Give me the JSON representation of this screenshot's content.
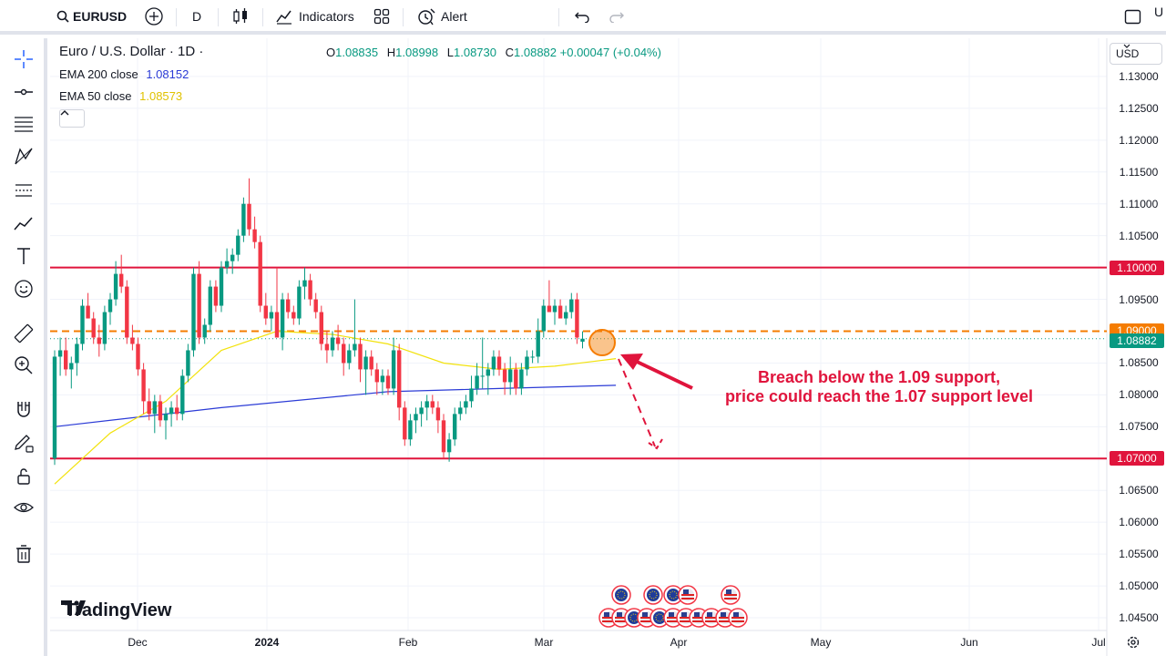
{
  "toolbar": {
    "symbol": "EURUSD",
    "interval": "D",
    "indicators_label": "Indicators",
    "alert_label": "Alert",
    "cut_text": "U"
  },
  "legend": {
    "title": "Euro / U.S. Dollar · 1D ·",
    "open_key": "O",
    "open": "1.08835",
    "high_key": "H",
    "high": "1.08998",
    "low_key": "L",
    "low": "1.08730",
    "close_key": "C",
    "close": "1.08882",
    "change": "+0.00047 (+0.04%)",
    "ema200_label": "EMA 200 close",
    "ema200_value": "1.08152",
    "ema200_color": "#2b3bd6",
    "ema50_label": "EMA 50 close",
    "ema50_value": "1.08573",
    "ema50_color": "#f2e20c"
  },
  "currency": "USD",
  "price_axis": [
    "1.13000",
    "1.12500",
    "1.12000",
    "1.11500",
    "1.11000",
    "1.10500",
    "1.09500",
    "1.08500",
    "1.08000",
    "1.07500",
    "1.06500",
    "1.06000",
    "1.05500",
    "1.05000",
    "1.04500"
  ],
  "price_tags": [
    {
      "label": "1.10000",
      "price": 1.1,
      "color": "#e0143c"
    },
    {
      "label": "1.09000",
      "price": 1.09,
      "color": "#f57c00"
    },
    {
      "label": "1.08882",
      "price": 1.08882,
      "color": "#089981"
    },
    {
      "label": "1.07000",
      "price": 1.07,
      "color": "#e0143c"
    }
  ],
  "time_axis": [
    "Dec",
    "2024",
    "Feb",
    "Mar",
    "Apr",
    "May",
    "Jun",
    "Jul"
  ],
  "annotation": {
    "line1": "Breach below the 1.09 support,",
    "line2": "price could reach the 1.07 support level"
  },
  "brand": "TradingView",
  "colors": {
    "up": "#089981",
    "down": "#f23645",
    "resistance": "#e0143c",
    "support_dashed": "#f57c00"
  },
  "chart_data": {
    "type": "candlestick",
    "ylim": [
      1.043,
      1.136
    ],
    "levels": [
      1.1,
      1.09,
      1.07
    ],
    "candles": [
      {
        "o": 1.07,
        "h": 1.087,
        "l": 1.069,
        "c": 1.086
      },
      {
        "o": 1.086,
        "h": 1.089,
        "l": 1.083,
        "c": 1.087
      },
      {
        "o": 1.087,
        "h": 1.089,
        "l": 1.083,
        "c": 1.084
      },
      {
        "o": 1.084,
        "h": 1.086,
        "l": 1.081,
        "c": 1.085
      },
      {
        "o": 1.085,
        "h": 1.089,
        "l": 1.083,
        "c": 1.088
      },
      {
        "o": 1.088,
        "h": 1.095,
        "l": 1.087,
        "c": 1.094
      },
      {
        "o": 1.094,
        "h": 1.096,
        "l": 1.092,
        "c": 1.092
      },
      {
        "o": 1.092,
        "h": 1.093,
        "l": 1.088,
        "c": 1.089
      },
      {
        "o": 1.089,
        "h": 1.091,
        "l": 1.086,
        "c": 1.088
      },
      {
        "o": 1.088,
        "h": 1.094,
        "l": 1.087,
        "c": 1.093
      },
      {
        "o": 1.093,
        "h": 1.096,
        "l": 1.091,
        "c": 1.095
      },
      {
        "o": 1.095,
        "h": 1.101,
        "l": 1.094,
        "c": 1.099
      },
      {
        "o": 1.099,
        "h": 1.102,
        "l": 1.096,
        "c": 1.097
      },
      {
        "o": 1.097,
        "h": 1.098,
        "l": 1.088,
        "c": 1.089
      },
      {
        "o": 1.089,
        "h": 1.091,
        "l": 1.087,
        "c": 1.088
      },
      {
        "o": 1.088,
        "h": 1.089,
        "l": 1.083,
        "c": 1.084
      },
      {
        "o": 1.084,
        "h": 1.085,
        "l": 1.077,
        "c": 1.079
      },
      {
        "o": 1.079,
        "h": 1.081,
        "l": 1.076,
        "c": 1.077
      },
      {
        "o": 1.077,
        "h": 1.08,
        "l": 1.074,
        "c": 1.079
      },
      {
        "o": 1.079,
        "h": 1.08,
        "l": 1.075,
        "c": 1.076
      },
      {
        "o": 1.076,
        "h": 1.078,
        "l": 1.073,
        "c": 1.077
      },
      {
        "o": 1.077,
        "h": 1.079,
        "l": 1.075,
        "c": 1.078
      },
      {
        "o": 1.078,
        "h": 1.08,
        "l": 1.076,
        "c": 1.077
      },
      {
        "o": 1.077,
        "h": 1.084,
        "l": 1.076,
        "c": 1.083
      },
      {
        "o": 1.083,
        "h": 1.088,
        "l": 1.082,
        "c": 1.087
      },
      {
        "o": 1.087,
        "h": 1.1,
        "l": 1.086,
        "c": 1.099
      },
      {
        "o": 1.099,
        "h": 1.101,
        "l": 1.088,
        "c": 1.089
      },
      {
        "o": 1.089,
        "h": 1.092,
        "l": 1.088,
        "c": 1.091
      },
      {
        "o": 1.091,
        "h": 1.098,
        "l": 1.09,
        "c": 1.097
      },
      {
        "o": 1.097,
        "h": 1.098,
        "l": 1.093,
        "c": 1.094
      },
      {
        "o": 1.094,
        "h": 1.101,
        "l": 1.093,
        "c": 1.1
      },
      {
        "o": 1.1,
        "h": 1.103,
        "l": 1.099,
        "c": 1.101
      },
      {
        "o": 1.101,
        "h": 1.103,
        "l": 1.099,
        "c": 1.102
      },
      {
        "o": 1.102,
        "h": 1.106,
        "l": 1.101,
        "c": 1.105
      },
      {
        "o": 1.105,
        "h": 1.111,
        "l": 1.104,
        "c": 1.11
      },
      {
        "o": 1.11,
        "h": 1.114,
        "l": 1.105,
        "c": 1.106
      },
      {
        "o": 1.106,
        "h": 1.108,
        "l": 1.103,
        "c": 1.104
      },
      {
        "o": 1.104,
        "h": 1.105,
        "l": 1.093,
        "c": 1.094
      },
      {
        "o": 1.094,
        "h": 1.096,
        "l": 1.091,
        "c": 1.092
      },
      {
        "o": 1.092,
        "h": 1.094,
        "l": 1.09,
        "c": 1.093
      },
      {
        "o": 1.093,
        "h": 1.1,
        "l": 1.089,
        "c": 1.089
      },
      {
        "o": 1.089,
        "h": 1.096,
        "l": 1.087,
        "c": 1.095
      },
      {
        "o": 1.095,
        "h": 1.096,
        "l": 1.092,
        "c": 1.093
      },
      {
        "o": 1.093,
        "h": 1.094,
        "l": 1.091,
        "c": 1.092
      },
      {
        "o": 1.092,
        "h": 1.098,
        "l": 1.091,
        "c": 1.097
      },
      {
        "o": 1.097,
        "h": 1.1,
        "l": 1.095,
        "c": 1.098
      },
      {
        "o": 1.098,
        "h": 1.099,
        "l": 1.094,
        "c": 1.095
      },
      {
        "o": 1.095,
        "h": 1.096,
        "l": 1.092,
        "c": 1.093
      },
      {
        "o": 1.093,
        "h": 1.094,
        "l": 1.087,
        "c": 1.088
      },
      {
        "o": 1.088,
        "h": 1.09,
        "l": 1.085,
        "c": 1.087
      },
      {
        "o": 1.087,
        "h": 1.09,
        "l": 1.086,
        "c": 1.089
      },
      {
        "o": 1.089,
        "h": 1.091,
        "l": 1.087,
        "c": 1.088
      },
      {
        "o": 1.088,
        "h": 1.089,
        "l": 1.083,
        "c": 1.085
      },
      {
        "o": 1.085,
        "h": 1.088,
        "l": 1.084,
        "c": 1.087
      },
      {
        "o": 1.087,
        "h": 1.095,
        "l": 1.086,
        "c": 1.088
      },
      {
        "o": 1.088,
        "h": 1.089,
        "l": 1.082,
        "c": 1.084
      },
      {
        "o": 1.084,
        "h": 1.087,
        "l": 1.08,
        "c": 1.086
      },
      {
        "o": 1.086,
        "h": 1.087,
        "l": 1.083,
        "c": 1.084
      },
      {
        "o": 1.084,
        "h": 1.085,
        "l": 1.08,
        "c": 1.082
      },
      {
        "o": 1.082,
        "h": 1.084,
        "l": 1.08,
        "c": 1.083
      },
      {
        "o": 1.083,
        "h": 1.084,
        "l": 1.08,
        "c": 1.081
      },
      {
        "o": 1.081,
        "h": 1.089,
        "l": 1.08,
        "c": 1.087
      },
      {
        "o": 1.087,
        "h": 1.088,
        "l": 1.076,
        "c": 1.078
      },
      {
        "o": 1.078,
        "h": 1.079,
        "l": 1.072,
        "c": 1.073
      },
      {
        "o": 1.073,
        "h": 1.077,
        "l": 1.072,
        "c": 1.076
      },
      {
        "o": 1.076,
        "h": 1.078,
        "l": 1.074,
        "c": 1.077
      },
      {
        "o": 1.077,
        "h": 1.079,
        "l": 1.075,
        "c": 1.078
      },
      {
        "o": 1.078,
        "h": 1.08,
        "l": 1.076,
        "c": 1.079
      },
      {
        "o": 1.079,
        "h": 1.08,
        "l": 1.077,
        "c": 1.078
      },
      {
        "o": 1.078,
        "h": 1.079,
        "l": 1.074,
        "c": 1.076
      },
      {
        "o": 1.076,
        "h": 1.077,
        "l": 1.07,
        "c": 1.071
      },
      {
        "o": 1.071,
        "h": 1.074,
        "l": 1.0695,
        "c": 1.073
      },
      {
        "o": 1.073,
        "h": 1.078,
        "l": 1.072,
        "c": 1.077
      },
      {
        "o": 1.077,
        "h": 1.079,
        "l": 1.076,
        "c": 1.078
      },
      {
        "o": 1.078,
        "h": 1.08,
        "l": 1.077,
        "c": 1.079
      },
      {
        "o": 1.079,
        "h": 1.083,
        "l": 1.078,
        "c": 1.081
      },
      {
        "o": 1.081,
        "h": 1.085,
        "l": 1.08,
        "c": 1.083
      },
      {
        "o": 1.083,
        "h": 1.089,
        "l": 1.081,
        "c": 1.083
      },
      {
        "o": 1.083,
        "h": 1.085,
        "l": 1.08,
        "c": 1.084
      },
      {
        "o": 1.084,
        "h": 1.087,
        "l": 1.083,
        "c": 1.086
      },
      {
        "o": 1.086,
        "h": 1.087,
        "l": 1.083,
        "c": 1.084
      },
      {
        "o": 1.084,
        "h": 1.085,
        "l": 1.08,
        "c": 1.082
      },
      {
        "o": 1.082,
        "h": 1.086,
        "l": 1.08,
        "c": 1.084
      },
      {
        "o": 1.084,
        "h": 1.085,
        "l": 1.08,
        "c": 1.081
      },
      {
        "o": 1.081,
        "h": 1.085,
        "l": 1.08,
        "c": 1.084
      },
      {
        "o": 1.084,
        "h": 1.087,
        "l": 1.083,
        "c": 1.086
      },
      {
        "o": 1.086,
        "h": 1.087,
        "l": 1.085,
        "c": 1.086
      },
      {
        "o": 1.086,
        "h": 1.092,
        "l": 1.085,
        "c": 1.09
      },
      {
        "o": 1.09,
        "h": 1.095,
        "l": 1.089,
        "c": 1.094
      },
      {
        "o": 1.094,
        "h": 1.098,
        "l": 1.093,
        "c": 1.093
      },
      {
        "o": 1.093,
        "h": 1.095,
        "l": 1.091,
        "c": 1.094
      },
      {
        "o": 1.094,
        "h": 1.095,
        "l": 1.092,
        "c": 1.092
      },
      {
        "o": 1.092,
        "h": 1.094,
        "l": 1.091,
        "c": 1.093
      },
      {
        "o": 1.093,
        "h": 1.096,
        "l": 1.092,
        "c": 1.095
      },
      {
        "o": 1.095,
        "h": 1.096,
        "l": 1.088,
        "c": 1.089
      },
      {
        "o": 1.08835,
        "h": 1.08998,
        "l": 1.0873,
        "c": 1.08882
      }
    ],
    "ema200": [
      [
        0,
        1.075
      ],
      [
        30,
        1.078
      ],
      [
        60,
        1.0805
      ],
      [
        80,
        1.081
      ],
      [
        101,
        1.0815
      ]
    ],
    "ema50": [
      [
        0,
        1.066
      ],
      [
        10,
        1.074
      ],
      [
        20,
        1.079
      ],
      [
        30,
        1.087
      ],
      [
        40,
        1.09
      ],
      [
        50,
        1.0895
      ],
      [
        60,
        1.088
      ],
      [
        70,
        1.085
      ],
      [
        80,
        1.084
      ],
      [
        90,
        1.0845
      ],
      [
        101,
        1.0857
      ]
    ]
  }
}
